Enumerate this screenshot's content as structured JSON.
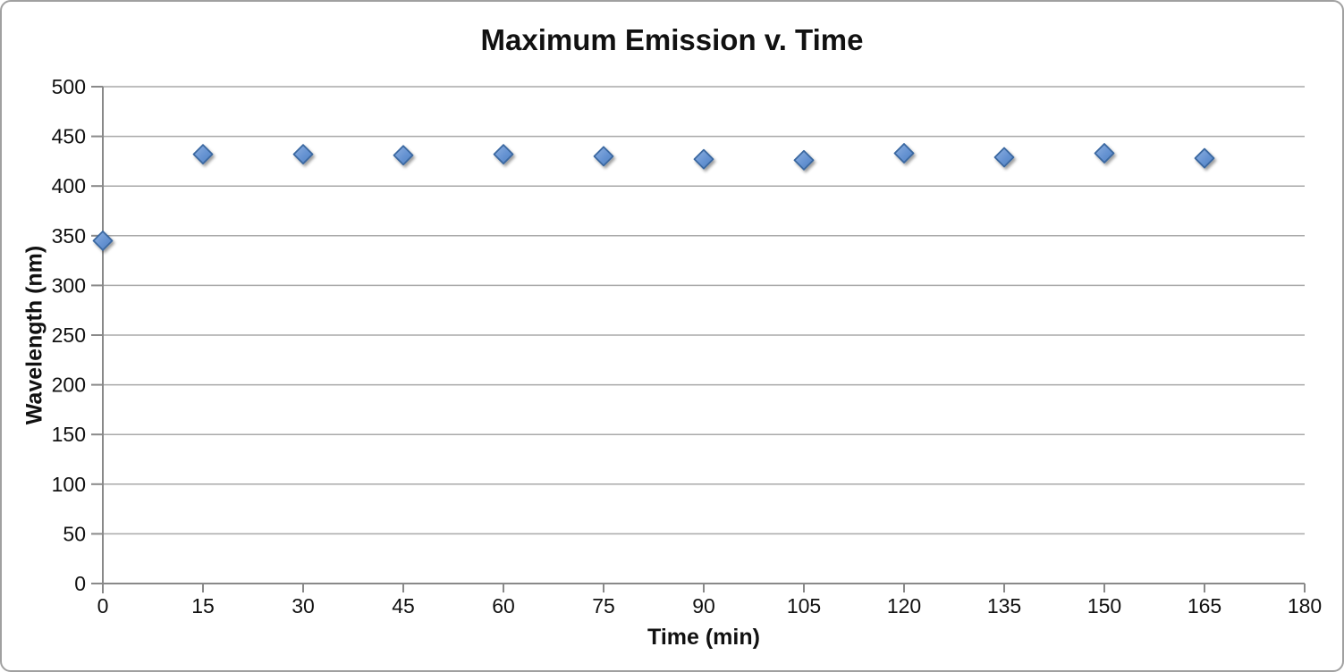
{
  "chart_data": {
    "type": "scatter",
    "title": "Maximum Emission v. Time",
    "xlabel": "Time (min)",
    "ylabel": "Wavelength (nm)",
    "xlim": [
      0,
      180
    ],
    "ylim": [
      0,
      500
    ],
    "x_ticks": [
      0,
      15,
      30,
      45,
      60,
      75,
      90,
      105,
      120,
      135,
      150,
      165,
      180
    ],
    "y_ticks": [
      0,
      50,
      100,
      150,
      200,
      250,
      300,
      350,
      400,
      450,
      500
    ],
    "grid": "horizontal-gridlines-on",
    "legend_position": "none",
    "series": [
      {
        "marker": "diamond",
        "x": [
          0,
          15,
          30,
          45,
          60,
          75,
          90,
          105,
          120,
          135,
          150,
          165
        ],
        "y": [
          345,
          432,
          432,
          431,
          432,
          430,
          427,
          426,
          433,
          429,
          433,
          428
        ]
      }
    ]
  },
  "colors": {
    "marker_fill_light": "#8fb1e0",
    "marker_fill_dark": "#4e7fc0",
    "marker_stroke": "#3a67a0",
    "gridline": "#a9a9a9",
    "axis": "#898989",
    "text": "#111111",
    "frame_border": "#a0a0a0",
    "background": "#ffffff"
  }
}
